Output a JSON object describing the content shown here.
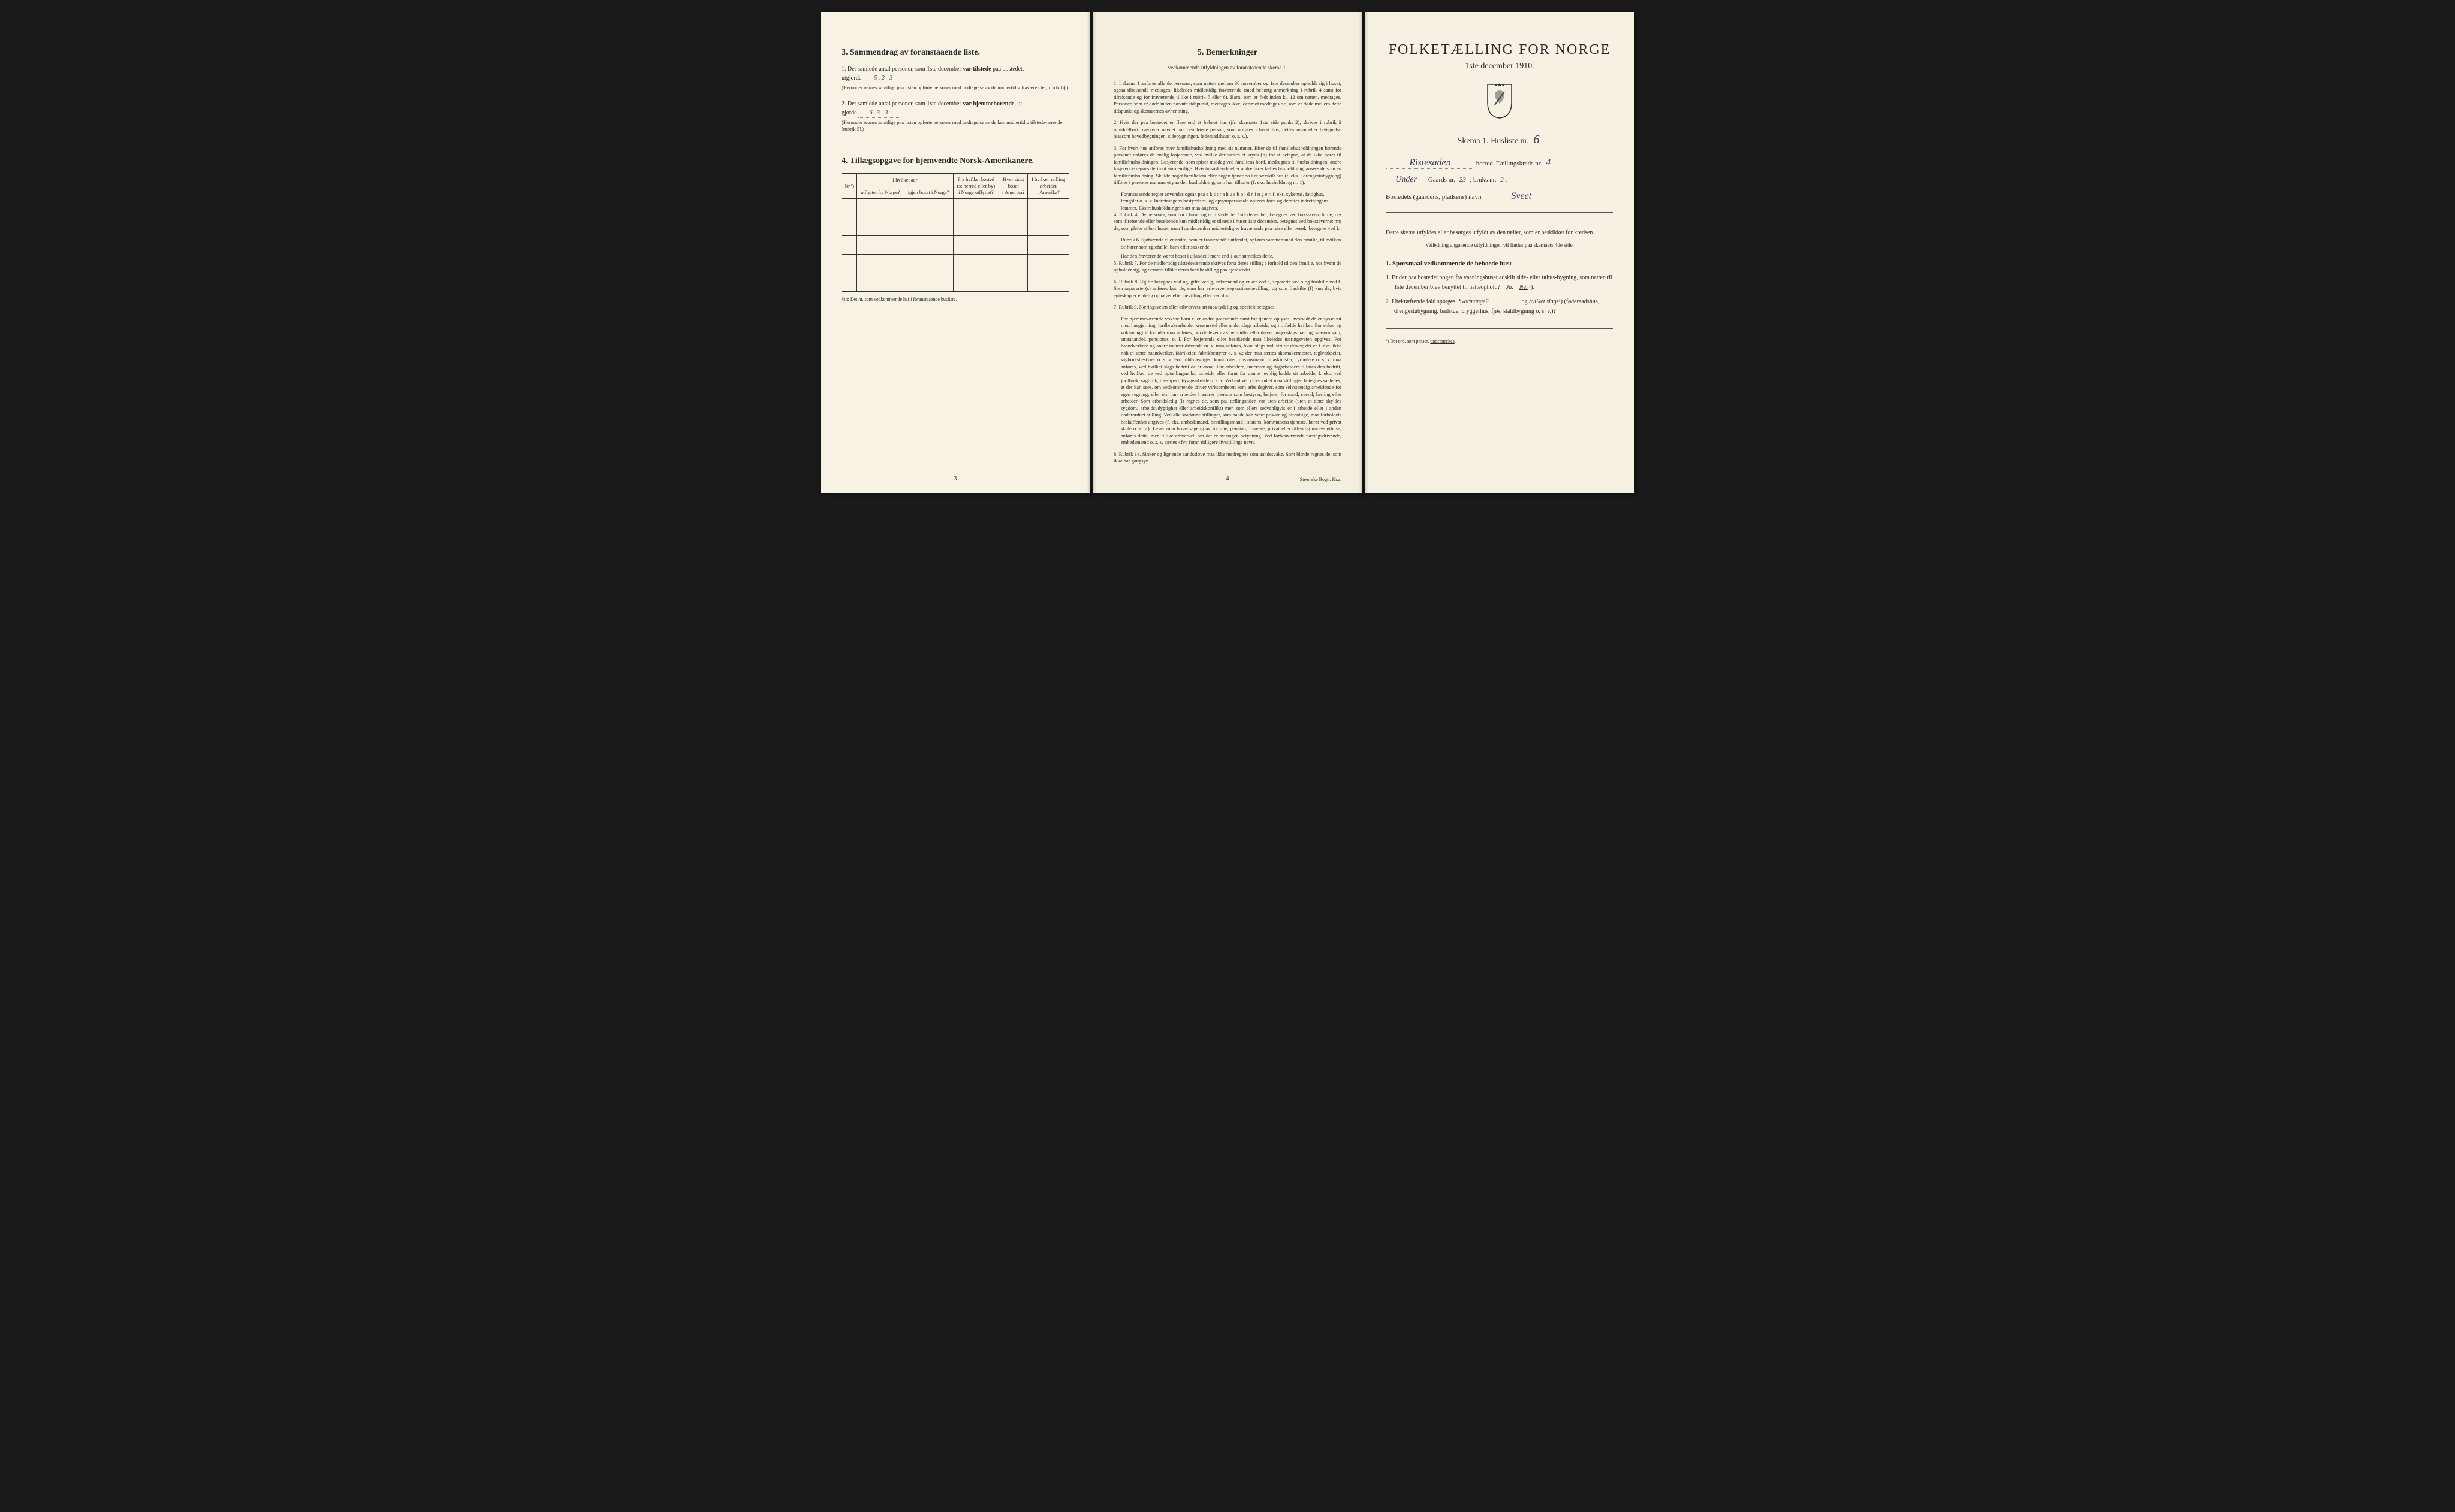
{
  "page1": {
    "section3_title": "3.  Sammendrag av foranstaaende liste.",
    "item1_prefix": "1. Det samlede antal personer, som 1ste december ",
    "item1_bold": "var tilstede",
    "item1_suffix": " paa bostedet,",
    "item1_line2_prefix": "utgjorde ",
    "item1_value": "5 . 2 - 3",
    "item1_paren": "(Herunder regnes samtlige paa listen opførte personer med undtagelse av de midlertidig fraværende [rubrik 6].)",
    "item1_paren_italic": "midlertidig fraværende",
    "item2_prefix": "2. Det samlede antal personer, som 1ste december ",
    "item2_bold": "var hjemmehørende",
    "item2_suffix": ", ut-",
    "item2_line2_prefix": "gjorde ",
    "item2_value": "6 . 3 - 3",
    "item2_paren": "(Herunder regnes samtlige paa listen opførte personer med undtagelse av de kun midlertidig tilstedeværende [rubrik 5].)",
    "section4_title": "4.  Tillægsopgave for hjemvendte Norsk-Amerikanere.",
    "table_headers": {
      "col1": "Nr.¹)",
      "col2_line1": "I hvilket aar",
      "col2_line2": "utflyttet fra Norge?",
      "col2_line3": "igjen bosat i Norge?",
      "col3_line1": "Fra hvilket bosted",
      "col3_line2": "(ɔ: herred eller by)",
      "col3_line3": "i Norge utflyttet?",
      "col4_line1": "Hvor sidst",
      "col4_line2": "bosat",
      "col4_line3": "i Amerika?",
      "col5_line1": "I hvilken stilling",
      "col5_line2": "arbeidet",
      "col5_line3": "i Amerika?"
    },
    "footnote": "¹) ɔ: Det nr. som vedkommende har i foranstaaende husliste.",
    "page_num": "3"
  },
  "page2": {
    "section_title": "5.  Bemerkninger",
    "subtitle": "vedkommende utfyldningen av foranstaaende skema 1.",
    "remarks": [
      {
        "num": "1.",
        "text": "I skema 1 anføres alle de personer, som natten mellem 30 november og 1ste december opholdt sig i huset; ogsaa tilreisende medtages; likeledes midlertidig fraværende (med behørig anmerkning i rubrik 4 samt for tilreisende og for fraværende tillike i rubrik 5 eller 6). Barn, som er født inden kl. 12 om natten, medtages. Personer, som er døde inden nævnte tidspunkt, medtages ikke; derimot medtages de, som er døde mellem dette tidspunkt og skemaernes avhentning."
      },
      {
        "num": "2.",
        "text": "Hvis der paa bostedet er flere end ét beboet hus (jfr. skemaets 1ste side punkt 2), skrives i rubrik 2 umiddelbart ovenover navnet paa den første person, som opføres i hvert hus, dettes navn eller betegnelse (saasom hovedbygningen, sidebygningen, føderaadshuset o. s. v.)."
      },
      {
        "num": "3.",
        "text": "For hvert hus anføres hver familiehusholdning med sit nummer. Efter de til familiehusholdningen hørende personer anføres de enslig losjerende, ved hvilke der sættes et kryds (×) for at betegne, at de ikke hører til familiehusholdningen. Losjerende, som spiser middag ved familiens bord, medregnes til husholdningen; andre losjerende regnes derimot som enslige. Hvis to søskende eller andre fører fælles husholdning, ansees de som en familiehusholdning. Skulde noget familielem eller nogen tjener bo i et særskilt hus (f. eks. i drengestubygning) tilføies i parentes nummeret paa den husholdning, som han tilhører (f. eks. husholdning nr. 1).",
        "sub": "Foranstaaende regler anvendes ogsaa paa e k s t r a h u s h o l d n i n g e r, f. eks. sykehus, fattighus, fængsler o. s. v. Indretningens bestyrelses- og opsynspersonale opføres først og derefter indretningens lemmer. Ekstrahusholdningens art maa angives."
      },
      {
        "num": "4.",
        "text": "Rubrik 4. De personer, som bor i huset og er tilstede der 1ste december, betegnes ved bokstaven: b; de, der som tilreisende eller besøkende kun midlertidig er tilstede i huset 1ste december, betegnes ved bokstaverne: mt; de, som pleier at bo i huset, men 1ste december midlertidig er fraværende paa reise eller besøk, betegnes ved f.",
        "sub2": "Rubrik 6. Sjøfarende eller andre, som er fraværende i utlandet, opføres sammen med den familie, til hvilken de hører som egtefælle, barn eller søskende.",
        "sub3": "Har den fraværende været bosat i utlandet i mere end 1 aar anmerkes dette."
      },
      {
        "num": "5.",
        "text": "Rubrik 7. For de midlertidig tilstedeværende skrives først deres stilling i forhold til den familie, hos hvem de opholder sig, og dernæst tillike deres familiestilling paa hjemstedet."
      },
      {
        "num": "6.",
        "text": "Rubrik 8. Ugifte betegnes ved ug, gifte ved g, enkemænd og enker ved e, separerte ved s og fraskilte ved f. Som separerte (s) anføres kun de, som har erhvervet separationsbevilling, og som fraskilte (f) kun de, hvis egteskap er endelig ophævet efter bevilling eller ved dom."
      },
      {
        "num": "7.",
        "text": "Rubrik 9. Næringsveien eller erhvervets art maa tydelig og specielt betegnes.",
        "extra": "For hjemmeværende voksne barn eller andre paarørende samt for tjenere oplyses, hvorvidt de er sysselsat med husgjerning, jordbruksarbeide, kreaturstel eller andet slags arbeide, og i tilfælde hvilket. For enker og voksne ugifte kvinder maa anføres, om de lever av sine midler eller driver nogenslags næring, saasom søm, smaahandel, pensionat, o. l. For losjerende eller besøkende maa likeledes næringsveien opgives. For haandverkere og andre industridrivende m. v. maa anføres, hvad slags industri de driver; det er f. eks. ikke nok at sætte haandverker, fabrikeier, fabrikbestyrer o. s. v.; der maa sættes skomakermester, teglverkseier, sagbruksbestyrer o. s. v. For fuldmægtiger, kontorister, opsynsmænd, maskinister, fyrbøtere o. s. v. maa anføres, ved hvilket slags bedrift de er ansat. For arbeidere, inderster og dagarbeidere tilføies den bedrift, ved hvilken de ved optællingen har arbeide eller forut for denne jevnlig hadde sit arbeide, f. eks. ved jordbruk, sagbruk, træsliperi, byggearbeide o. s. v. Ved enhver virksomhet maa stillingen betegnes saaledes, at det kan sees, om vedkommende driver virksomheten som arbeidsgiver, som selvstændig arbeidende for egen regning, eller om han arbeider i andres tjeneste som bestyrer, betjent, formand, svend, lærling eller arbeider. Som arbeidsledig (l) regnes de, som paa tællingstiden var uten arbeide (uten at dette skyldes sygdom, arbeidsudygtighet eller arbeidskonflikt) men som ellers sedvanligvis er i arbeide eller i anden underordnet stilling. Ved alle saadanne stillinger, som baade kan være private og offentlige, maa forholdets beskaffenhet angives (f. eks. embedsmand, bestillingsmand i statens, kommunens tjeneste, lærer ved privat skole o. s. v.). Lever man hovedsagelig av formue, pension, livrente, privat eller offentlig understøttelse, anføres dette, men tillike erhvervet, om det er av nogen betydning. Ved forhenværende næringsdrivende, embedsmænd o. s. v. sættes «fv» foran tidligere livsstillings navn."
      },
      {
        "num": "8.",
        "text": "Rubrik 14. Sinker og lignende aandssløve maa ikke medregnes som aandssvake. Som blinde regnes de, som ikke har gangsyn."
      }
    ],
    "page_num": "4",
    "printer": "Steen'ske Bogtr. Kr.a."
  },
  "page3": {
    "main_title": "FOLKETÆLLING FOR NORGE",
    "date": "1ste december 1910.",
    "skema_label": "Skema 1.  Husliste nr.",
    "husliste_nr": "6",
    "herred_value": "Ristesaden",
    "herred_label": "herred.  Tællingskreds nr.",
    "kreds_nr": "4",
    "under_label": "Under",
    "gaards_label": "Gaards nr.",
    "gaards_nr": "23",
    "bruks_label": ", bruks nr.",
    "bruks_nr": "2",
    "bosted_label": "Bostedets (gaardens, pladsens) navn",
    "bosted_value": "Sveet",
    "instruction": "Dette skema utfyldes eller besørges utfyldt av den tæller, som er beskikket for kredsen.",
    "instruction_sub": "Veiledning angaaende utfyldningen vil findes paa skemaets 4de side.",
    "q_section": "1. Spørsmaal vedkommende de beboede hus:",
    "q1": "1. Er der paa bostedet nogen fra vaaningshuset adskilt side- eller uthus-bygning, som natten til 1ste december blev benyttet til natteophold?   Ja.   Nei ¹).",
    "q1_ja": "Ja.",
    "q1_nei": "Nei",
    "q2": "2. I bekræftende fald spørges: hvormange? ______ og hvilket slags¹) (føderaadshus, drengestubygning, badstue, bryggerhus, fjøs, staldbygning o. s. v.)?",
    "q2_italic1": "hvormange?",
    "q2_italic2": "hvilket slags",
    "footnote": "¹) Det ord, som passer, understrekes.",
    "footnote_action": "understrekes"
  },
  "colors": {
    "paper": "#f5f0e1",
    "ink": "#2a2a2a",
    "handwriting": "#3a3a5a",
    "background": "#1a1a1a"
  }
}
